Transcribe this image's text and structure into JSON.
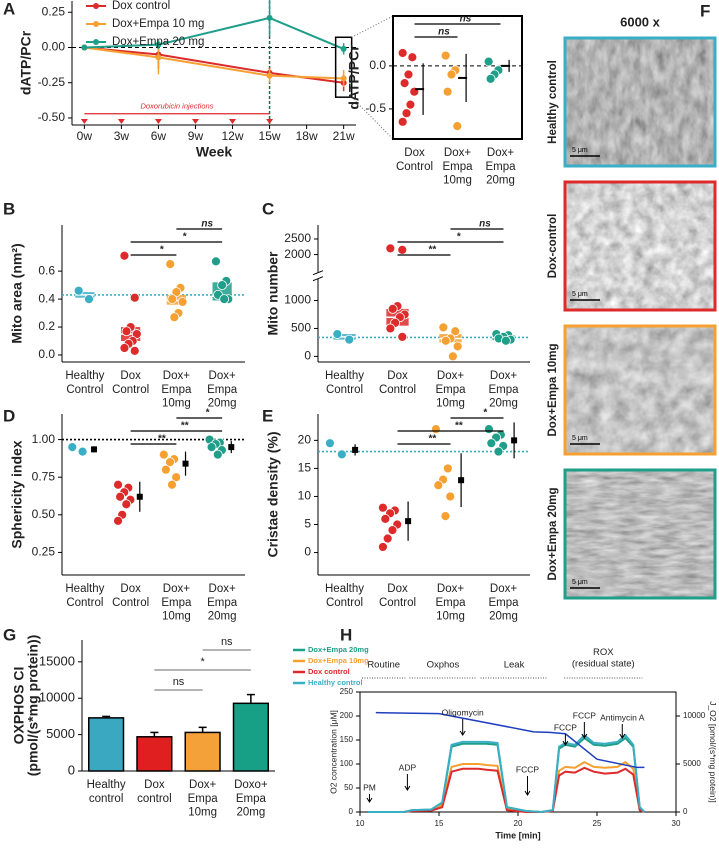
{
  "panel_letters": [
    "A",
    "B",
    "C",
    "D",
    "E",
    "F",
    "G",
    "H"
  ],
  "panel_f": {
    "header": "6000 x",
    "images": [
      {
        "label": "Healthy control",
        "border_color": "#3aaec4",
        "scale_bar": "5 μm"
      },
      {
        "label": "Dox-control",
        "border_color": "#dd2a2a",
        "scale_bar": "5 μm"
      },
      {
        "label": "Dox+Empa 10mg",
        "border_color": "#f5a031",
        "scale_bar": "5 μm"
      },
      {
        "label": "Dox+Empa 20mg",
        "border_color": "#1f9e89",
        "scale_bar": "5 μm"
      }
    ]
  },
  "chart_data": [
    {
      "type": "line",
      "xlabel": "Week",
      "ylabel": "dATP/PCr",
      "xlim": [
        -1,
        22
      ],
      "ylim": [
        -0.55,
        0.33
      ],
      "xticks": [
        {
          "value": 0,
          "label": "0w"
        },
        {
          "value": 3,
          "label": "3w"
        },
        {
          "value": 6,
          "label": "6w"
        },
        {
          "value": 9,
          "label": "9w"
        },
        {
          "value": 12,
          "label": "12w"
        },
        {
          "value": 15,
          "label": "15w"
        },
        {
          "value": 18,
          "label": "18w"
        },
        {
          "value": 21,
          "label": "21w"
        }
      ],
      "yticks": [
        {
          "value": -0.5,
          "label": "-0.50"
        },
        -0.25,
        {
          "value": 0,
          "label": "0.00"
        },
        0.25
      ],
      "hline": 0,
      "vline": 15,
      "legend": "upper left",
      "injections": {
        "label": "Doxorubicin injections",
        "color": "#dd2a2a",
        "x": [
          0,
          3,
          6,
          9,
          12,
          15
        ],
        "y": -0.47
      },
      "x": [
        0,
        6,
        15,
        21
      ],
      "series": [
        {
          "name": "Dox control",
          "color": "#dd2a2a",
          "values": [
            0,
            -0.05,
            -0.18,
            -0.25
          ],
          "errors": [
            0,
            0.1,
            0.04,
            0.06
          ]
        },
        {
          "name": "Dox+Empa 10 mg",
          "color": "#f5a031",
          "values": [
            0,
            -0.07,
            -0.2,
            -0.22
          ],
          "errors": [
            0,
            0.12,
            0.05,
            0.06
          ]
        },
        {
          "name": "Dox+Empa 20 mg",
          "color": "#1f9e89",
          "values": [
            0,
            0.02,
            0.21,
            -0.01
          ],
          "errors": [
            0,
            0.03,
            0.13,
            0.04
          ]
        }
      ]
    },
    {
      "type": "dot",
      "ylabel": "dATP/PCr",
      "frame": true,
      "mean_marker": "line",
      "ylim": [
        -0.85,
        0.58
      ],
      "yticks": [
        -0.5,
        {
          "value": 0,
          "label": "0.0"
        }
      ],
      "hline": 0,
      "categories": [
        "Dox\nControl",
        "Dox+\nEmpa\n10mg",
        "Dox+\nEmpa\n20mg"
      ],
      "colors": [
        "#dd2a2a",
        "#f5a031",
        "#1f9e89"
      ],
      "points": [
        [
          0.15,
          0.1,
          -0.1,
          -0.2,
          -0.3,
          -0.45,
          -0.55,
          -0.65
        ],
        [
          0.12,
          -0.05,
          -0.1,
          -0.3,
          -0.7
        ],
        [
          0.05,
          -0.05,
          -0.1,
          -0.15
        ]
      ],
      "means": [
        -0.27,
        -0.14,
        0.0
      ],
      "errors": [
        0.3,
        0.28,
        0.07
      ],
      "brackets": [
        {
          "label": "ns",
          "pair": [
            0,
            2
          ]
        },
        {
          "label": "ns",
          "pair": [
            0,
            1
          ]
        }
      ]
    },
    {
      "type": "dot",
      "ylabel": "Mito area (nm²)",
      "ylim": [
        -0.05,
        0.93
      ],
      "yticks": [
        {
          "value": 0,
          "label": "0.0"
        },
        0.2,
        0.4,
        0.6
      ],
      "reference": 0.43,
      "reference_color": "#3aaec4",
      "categories": [
        "Healthy\nControl",
        "Dox\nControl",
        "Dox+\nEmpa\n10mg",
        "Dox+\nEmpa\n20mg"
      ],
      "colors": [
        "#3aaec4",
        "#dd2a2a",
        "#f5a031",
        "#1f9e89"
      ],
      "points": [
        [
          0.46,
          0.4
        ],
        [
          0.71,
          0.41,
          0.2,
          0.17,
          0.15,
          0.1,
          0.08,
          0.05,
          0.03
        ],
        [
          0.65,
          0.48,
          0.45,
          0.4,
          0.38,
          0.3,
          0.27
        ],
        [
          0.67,
          0.53,
          0.5,
          0.43,
          0.4,
          0.4
        ]
      ],
      "boxes": [
        [
          0.41,
          0.43,
          0.45
        ],
        [
          0.1,
          0.15,
          0.2
        ],
        [
          0.36,
          0.39,
          0.43
        ],
        [
          0.39,
          0.42,
          0.52
        ]
      ],
      "brackets": [
        {
          "label": "ns",
          "pair": [
            2,
            3
          ]
        },
        {
          "label": "*",
          "pair": [
            1,
            3
          ]
        },
        {
          "label": "*",
          "pair": [
            1,
            2
          ]
        }
      ]
    },
    {
      "type": "dot",
      "ylabel": "Mito number",
      "ylim": [
        -100,
        2950
      ],
      "ybreak": [
        1150,
        1850
      ],
      "yticks": [
        0,
        500,
        1000,
        2000,
        2500
      ],
      "reference": 340,
      "reference_color": "#3aaec4",
      "categories": [
        "Healthy\nControl",
        "Dox\nControl",
        "Dox+\nEmpa\n10mg",
        "Dox+\nEmpa\n20mg"
      ],
      "colors": [
        "#3aaec4",
        "#dd2a2a",
        "#f5a031",
        "#1f9e89"
      ],
      "points": [
        [
          400,
          300
        ],
        [
          2200,
          2150,
          900,
          850,
          750,
          700,
          600,
          500,
          350
        ],
        [
          520,
          450,
          320,
          280,
          180,
          0
        ],
        [
          400,
          380,
          350,
          320,
          300,
          280
        ]
      ],
      "boxes": [
        [
          300,
          350,
          400
        ],
        [
          550,
          700,
          850
        ],
        [
          250,
          320,
          400
        ],
        [
          290,
          340,
          380
        ]
      ],
      "brackets": [
        {
          "label": "ns",
          "pair": [
            2,
            3
          ]
        },
        {
          "label": "*",
          "pair": [
            1,
            3
          ]
        },
        {
          "label": "**",
          "pair": [
            1,
            2
          ]
        }
      ]
    },
    {
      "type": "dot",
      "ylabel": "Sphericity index",
      "mean_marker": "square",
      "ylim": [
        0.1,
        1.17
      ],
      "yticks": [
        0.25,
        {
          "value": 0.5,
          "label": "0.50"
        },
        0.75,
        {
          "value": 1,
          "label": "1.00"
        }
      ],
      "reference": 1,
      "reference_color": "#000000",
      "categories": [
        "Healthy\nControl",
        "Dox\nControl",
        "Dox+\nEmpa\n10mg",
        "Dox+\nEmpa\n20mg"
      ],
      "colors": [
        "#3aaec4",
        "#dd2a2a",
        "#f5a031",
        "#1f9e89"
      ],
      "points": [
        [
          0.95,
          0.92
        ],
        [
          0.7,
          0.68,
          0.65,
          0.62,
          0.6,
          0.57,
          0.5,
          0.46
        ],
        [
          0.9,
          0.87,
          0.85,
          0.8,
          0.75,
          0.7
        ],
        [
          1.0,
          0.98,
          0.97,
          0.95,
          0.93,
          0.9
        ]
      ],
      "means": [
        0.935,
        0.62,
        0.84,
        0.95
      ],
      "errors": [
        0.02,
        0.1,
        0.08,
        0.04
      ],
      "brackets": [
        {
          "label": "*",
          "pair": [
            2,
            3
          ]
        },
        {
          "label": "**",
          "pair": [
            1,
            3
          ]
        },
        {
          "label": "**",
          "pair": [
            1,
            2
          ]
        }
      ]
    },
    {
      "type": "dot",
      "ylabel": "Cristae density (%)",
      "mean_marker": "square",
      "ylim": [
        -4,
        24.7
      ],
      "yticks": [
        0,
        5,
        10,
        15,
        20
      ],
      "reference": 18,
      "reference_color": "#3aaec4",
      "categories": [
        "Healthy\nControl",
        "Dox\nControl",
        "Dox+\nEmpa\n10mg",
        "Dox+\nEmpa\n20mg"
      ],
      "colors": [
        "#3aaec4",
        "#dd2a2a",
        "#f5a031",
        "#1f9e89"
      ],
      "points": [
        [
          19.5,
          17.5
        ],
        [
          8,
          7.5,
          7,
          6,
          5,
          4,
          2.5,
          1
        ],
        [
          22,
          15,
          13,
          12,
          10,
          6.5
        ],
        [
          22,
          21,
          20.5,
          19.5,
          19,
          18
        ]
      ],
      "means": [
        18.3,
        5.6,
        12.9,
        20
      ],
      "errors": [
        1,
        3.5,
        4.8,
        3.2
      ],
      "brackets": [
        {
          "label": "*",
          "pair": [
            2,
            3
          ]
        },
        {
          "label": "**",
          "pair": [
            1,
            3
          ]
        },
        {
          "label": "**",
          "pair": [
            1,
            2
          ]
        }
      ]
    },
    {
      "type": "bar",
      "ylabel": "OXPHOS CI",
      "ylabel_unit": "(pmol/(s*mg protein))",
      "ylim": [
        0,
        18000
      ],
      "yticks": [
        0,
        5000,
        10000,
        15000
      ],
      "categories": [
        "Healthy\ncontrol",
        "Dox\ncontrol",
        "Dox+\nEmpa\n10mg",
        "Doxo+\nEmpa\n20mg"
      ],
      "colors": [
        "#3aa8c1",
        "#e02020",
        "#f4a13a",
        "#17a085"
      ],
      "values": [
        7300,
        4700,
        5300,
        9300
      ],
      "errors": [
        200,
        600,
        700,
        1200
      ],
      "brackets": [
        {
          "label": "ns",
          "pair": [
            2,
            3
          ]
        },
        {
          "label": "*",
          "pair": [
            1,
            3
          ]
        },
        {
          "label": "ns",
          "pair": [
            1,
            2
          ]
        }
      ]
    },
    {
      "type": "respirometry",
      "xlabel": "Time [min]",
      "ylabel": "O2 concentration [μM]",
      "y2label": "J_O2 [pmol/(s*mg protein)]",
      "xlim": [
        10,
        30
      ],
      "ylim": [
        0,
        250
      ],
      "y2lim": [
        0,
        12500
      ],
      "xticks": [
        10,
        15,
        20,
        25,
        30
      ],
      "yticks": [
        0,
        50,
        100,
        150,
        200,
        250
      ],
      "y2ticks": [
        0,
        5000,
        10000
      ],
      "legend": "outside left",
      "phases": [
        {
          "label": "Routine",
          "range": [
            10,
            13
          ]
        },
        {
          "label": "Oxphos",
          "range": [
            13,
            17.5
          ]
        },
        {
          "label": "Leak",
          "range": [
            17.5,
            22
          ]
        },
        {
          "label": "ROX\n(residual state)",
          "range": [
            22.8,
            28
          ]
        }
      ],
      "events": [
        {
          "label": "PM",
          "x": 10.6
        },
        {
          "label": "ADP",
          "x": 13
        },
        {
          "label": "Oligomycin",
          "x": 16.5
        },
        {
          "label": "FCCP",
          "x": 20.6
        },
        {
          "label": "FCCP",
          "x": 23
        },
        {
          "label": "FCCP",
          "x": 24.2
        },
        {
          "label": "Antimycin A",
          "x": 26.6
        }
      ],
      "o2_line": {
        "color": "#1f3fbf",
        "x": [
          11,
          15,
          21,
          22,
          23,
          25,
          27.5,
          28
        ],
        "values": [
          207,
          205,
          167,
          166,
          163,
          110,
          93,
          93
        ]
      },
      "x": [
        10.5,
        12,
        12.8,
        13.3,
        14.5,
        15.2,
        15.8,
        16.5,
        17,
        17.5,
        18,
        18.7,
        19.3,
        20.5,
        21.5,
        22.2,
        22.6,
        23,
        23.6,
        24.2,
        24.8,
        25.5,
        26.3,
        26.8,
        27.3,
        27.7,
        28
      ],
      "series": [
        {
          "name": "Dox+Empa 20mg",
          "color": "#1f9e89",
          "axis": "y2",
          "values": [
            0,
            0,
            0,
            200,
            250,
            900,
            6800,
            7100,
            7100,
            7100,
            7100,
            7000,
            500,
            100,
            0,
            200,
            6600,
            7000,
            6800,
            7700,
            7000,
            6900,
            7100,
            7700,
            6800,
            500,
            0
          ]
        },
        {
          "name": "Dox+Empa 10mg",
          "color": "#f5a031",
          "axis": "y2",
          "values": [
            0,
            0,
            0,
            150,
            200,
            700,
            4700,
            5000,
            5000,
            5000,
            4900,
            4800,
            300,
            50,
            0,
            150,
            4300,
            4700,
            4600,
            5200,
            4700,
            4600,
            4700,
            5200,
            4500,
            300,
            0
          ]
        },
        {
          "name": "Dox control",
          "color": "#dd2a2a",
          "axis": "y2",
          "values": [
            0,
            0,
            0,
            100,
            150,
            500,
            4200,
            4500,
            4500,
            4500,
            4400,
            4300,
            200,
            0,
            0,
            100,
            3800,
            4200,
            4100,
            4600,
            4200,
            4000,
            4100,
            4500,
            3900,
            200,
            0
          ]
        },
        {
          "name": "Healthy control",
          "color": "#3aaec4",
          "axis": "y2",
          "values": [
            0,
            0,
            0,
            200,
            250,
            1000,
            7000,
            7300,
            7300,
            7300,
            7300,
            7200,
            500,
            100,
            0,
            200,
            6800,
            7200,
            7000,
            8000,
            7200,
            7100,
            7300,
            8000,
            7000,
            500,
            0
          ]
        }
      ]
    }
  ]
}
